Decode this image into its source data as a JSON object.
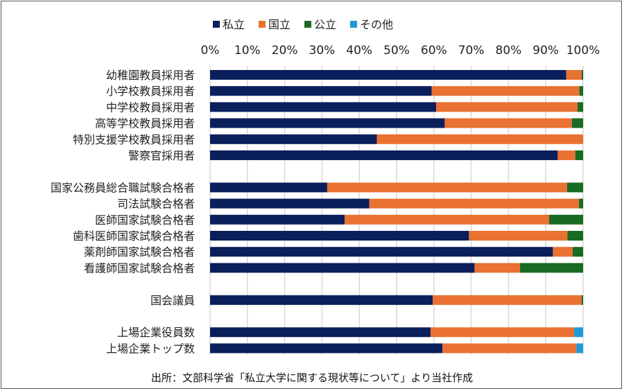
{
  "chart_data": {
    "type": "bar",
    "orientation": "horizontal",
    "stacked": "percent",
    "categories": [
      "幼稚園教員採用者",
      "小学校教員採用者",
      "中学校教員採用者",
      "高等学校教員採用者",
      "特別支援学校教員採用者",
      "警察官採用者",
      "",
      "国家公務員総合職試験合格者",
      "司法試験合格者",
      "医師国家試験合格者",
      "歯科医師国家試験合格者",
      "薬剤師国家試験合格者",
      "看護師国家試験合格者",
      "",
      "国会議員",
      "",
      "上場企業役員数",
      "上場企業トップ数"
    ],
    "series": [
      {
        "name": "私立",
        "color": "#0b1f5c",
        "values": [
          95.5,
          59.4,
          60.6,
          62.9,
          44.7,
          93.2,
          null,
          31.4,
          42.7,
          36.1,
          69.4,
          91.9,
          70.9,
          null,
          59.7,
          null,
          59.1,
          62.3
        ]
      },
      {
        "name": "国立",
        "color": "#e97132",
        "values": [
          4.1,
          39.6,
          37.9,
          34.1,
          55.3,
          4.7,
          null,
          64.3,
          56.2,
          54.8,
          26.4,
          5.3,
          12.2,
          null,
          39.9,
          null,
          38.5,
          35.9
        ]
      },
      {
        "name": "公立",
        "color": "#196b24",
        "values": [
          0.4,
          1.0,
          1.5,
          3.0,
          0,
          2.1,
          null,
          4.3,
          1.1,
          9.1,
          4.2,
          2.8,
          16.9,
          null,
          0.4,
          null,
          0,
          0
        ]
      },
      {
        "name": "その他",
        "color": "#1e9ad6",
        "values": [
          0,
          0,
          0,
          0,
          0,
          0,
          null,
          0,
          0,
          0,
          0,
          0,
          0,
          null,
          0,
          null,
          2.4,
          1.8
        ]
      }
    ],
    "xlim": [
      0,
      100
    ],
    "xticks": [
      "0%",
      "10%",
      "20%",
      "30%",
      "40%",
      "50%",
      "60%",
      "70%",
      "80%",
      "90%",
      "100%"
    ],
    "grid": true,
    "legend": "top-center",
    "title": "",
    "xlabel": "",
    "ylabel": ""
  },
  "source": "出所：文部科学省「私立大学に関する現状等について」より当社作成"
}
